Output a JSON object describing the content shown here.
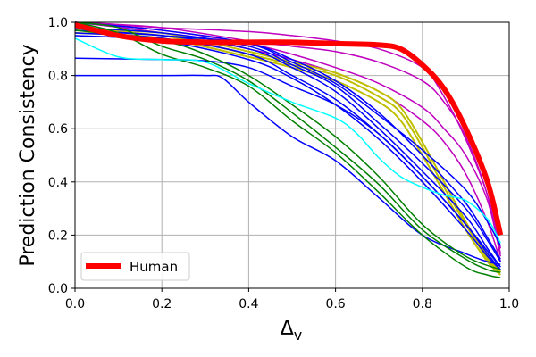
{
  "chart_data": {
    "type": "line",
    "title": "",
    "xlabel": "Δ",
    "xlabel_subscript": "v",
    "ylabel": "Prediction Consistency",
    "xlim": [
      0.0,
      1.0
    ],
    "ylim": [
      0.0,
      1.0
    ],
    "xticks": [
      "0.0",
      "0.2",
      "0.4",
      "0.6",
      "0.8",
      "1.0"
    ],
    "yticks": [
      "0.0",
      "0.2",
      "0.4",
      "0.6",
      "0.8",
      "1.0"
    ],
    "grid": true,
    "legend": {
      "position": "lower-left",
      "entries": [
        "Human"
      ]
    },
    "colors": {
      "human": "#ff0000",
      "blue": "#0000ff",
      "magenta": "#bf00bf",
      "olive": "#bfbf00",
      "green": "#008000",
      "cyan": "#00ffff",
      "grid": "#b0b0b0",
      "axis": "#000000"
    },
    "series": [
      {
        "name": "Human",
        "color": "human",
        "width": 6,
        "x": [
          0.0,
          0.1,
          0.2,
          0.3,
          0.4,
          0.5,
          0.6,
          0.7,
          0.75,
          0.8,
          0.85,
          0.9,
          0.95,
          0.98
        ],
        "y": [
          0.99,
          0.95,
          0.93,
          0.925,
          0.925,
          0.925,
          0.92,
          0.915,
          0.9,
          0.84,
          0.75,
          0.6,
          0.4,
          0.2
        ]
      },
      {
        "name": "magenta-1",
        "color": "magenta",
        "width": 1.5,
        "x": [
          0.0,
          0.2,
          0.4,
          0.5,
          0.6,
          0.7,
          0.8,
          0.85,
          0.9,
          0.95,
          0.98
        ],
        "y": [
          1.0,
          0.98,
          0.965,
          0.95,
          0.93,
          0.9,
          0.83,
          0.72,
          0.56,
          0.35,
          0.15
        ]
      },
      {
        "name": "magenta-2",
        "color": "magenta",
        "width": 1.5,
        "x": [
          0.0,
          0.2,
          0.4,
          0.5,
          0.6,
          0.7,
          0.8,
          0.85,
          0.9,
          0.95,
          0.98
        ],
        "y": [
          1.0,
          0.98,
          0.93,
          0.91,
          0.89,
          0.85,
          0.78,
          0.7,
          0.57,
          0.35,
          0.13
        ]
      },
      {
        "name": "magenta-3",
        "color": "magenta",
        "width": 1.5,
        "x": [
          0.0,
          0.2,
          0.4,
          0.5,
          0.6,
          0.7,
          0.8,
          0.85,
          0.9,
          0.95,
          0.98
        ],
        "y": [
          1.0,
          0.97,
          0.92,
          0.88,
          0.83,
          0.77,
          0.68,
          0.6,
          0.5,
          0.33,
          0.12
        ]
      },
      {
        "name": "magenta-4",
        "color": "magenta",
        "width": 1.5,
        "x": [
          0.0,
          0.2,
          0.4,
          0.5,
          0.6,
          0.7,
          0.8,
          0.85,
          0.9,
          0.95,
          0.98
        ],
        "y": [
          1.0,
          0.96,
          0.9,
          0.86,
          0.81,
          0.74,
          0.63,
          0.55,
          0.43,
          0.25,
          0.1
        ]
      },
      {
        "name": "olive-1",
        "color": "olive",
        "width": 2,
        "x": [
          0.0,
          0.2,
          0.4,
          0.5,
          0.6,
          0.7,
          0.75,
          0.8,
          0.85,
          0.9,
          0.95,
          0.98
        ],
        "y": [
          0.97,
          0.96,
          0.89,
          0.85,
          0.81,
          0.74,
          0.68,
          0.55,
          0.4,
          0.25,
          0.12,
          0.06
        ]
      },
      {
        "name": "olive-2",
        "color": "olive",
        "width": 2,
        "x": [
          0.0,
          0.2,
          0.4,
          0.5,
          0.6,
          0.7,
          0.75,
          0.8,
          0.85,
          0.9,
          0.95,
          0.98
        ],
        "y": [
          0.97,
          0.95,
          0.88,
          0.84,
          0.8,
          0.72,
          0.66,
          0.53,
          0.38,
          0.24,
          0.11,
          0.06
        ]
      },
      {
        "name": "olive-3",
        "color": "olive",
        "width": 2,
        "x": [
          0.0,
          0.2,
          0.4,
          0.5,
          0.6,
          0.7,
          0.75,
          0.8,
          0.85,
          0.9,
          0.95,
          0.98
        ],
        "y": [
          0.96,
          0.94,
          0.87,
          0.83,
          0.78,
          0.7,
          0.63,
          0.5,
          0.36,
          0.22,
          0.1,
          0.05
        ]
      },
      {
        "name": "blue-1",
        "color": "blue",
        "width": 1.5,
        "x": [
          0.0,
          0.2,
          0.4,
          0.5,
          0.6,
          0.7,
          0.8,
          0.9,
          0.95,
          0.98
        ],
        "y": [
          1.0,
          0.97,
          0.92,
          0.85,
          0.77,
          0.65,
          0.52,
          0.37,
          0.25,
          0.16
        ]
      },
      {
        "name": "blue-2",
        "color": "blue",
        "width": 1.5,
        "x": [
          0.0,
          0.2,
          0.4,
          0.5,
          0.6,
          0.7,
          0.8,
          0.9,
          0.95,
          0.98
        ],
        "y": [
          0.98,
          0.96,
          0.91,
          0.84,
          0.76,
          0.62,
          0.47,
          0.3,
          0.18,
          0.1
        ]
      },
      {
        "name": "blue-3",
        "color": "blue",
        "width": 1.5,
        "x": [
          0.0,
          0.2,
          0.4,
          0.5,
          0.6,
          0.7,
          0.8,
          0.9,
          0.95,
          0.98
        ],
        "y": [
          0.97,
          0.95,
          0.9,
          0.83,
          0.74,
          0.6,
          0.44,
          0.27,
          0.15,
          0.08
        ]
      },
      {
        "name": "blue-4",
        "color": "blue",
        "width": 1.5,
        "x": [
          0.0,
          0.2,
          0.4,
          0.5,
          0.6,
          0.7,
          0.8,
          0.9,
          0.95,
          0.98
        ],
        "y": [
          0.96,
          0.94,
          0.88,
          0.8,
          0.71,
          0.58,
          0.42,
          0.24,
          0.13,
          0.07
        ]
      },
      {
        "name": "blue-5",
        "color": "blue",
        "width": 1.5,
        "x": [
          0.0,
          0.2,
          0.4,
          0.5,
          0.6,
          0.7,
          0.8,
          0.9,
          0.95,
          0.98
        ],
        "y": [
          0.95,
          0.93,
          0.86,
          0.79,
          0.69,
          0.56,
          0.4,
          0.22,
          0.12,
          0.07
        ]
      },
      {
        "name": "blue-6",
        "color": "blue",
        "width": 1.5,
        "x": [
          0.0,
          0.2,
          0.4,
          0.5,
          0.6,
          0.7,
          0.8,
          0.9,
          0.95,
          0.98
        ],
        "y": [
          0.97,
          0.95,
          0.92,
          0.86,
          0.78,
          0.66,
          0.5,
          0.32,
          0.19,
          0.11
        ]
      },
      {
        "name": "blue-7",
        "color": "blue",
        "width": 1.5,
        "x": [
          0.0,
          0.2,
          0.3,
          0.4,
          0.5,
          0.6,
          0.7,
          0.8,
          0.9,
          0.95,
          0.98
        ],
        "y": [
          0.865,
          0.86,
          0.855,
          0.83,
          0.76,
          0.69,
          0.58,
          0.42,
          0.24,
          0.14,
          0.08
        ]
      },
      {
        "name": "blue-8",
        "color": "blue",
        "width": 1.5,
        "x": [
          0.0,
          0.2,
          0.3,
          0.34,
          0.4,
          0.5,
          0.6,
          0.7,
          0.8,
          0.9,
          0.95,
          0.98
        ],
        "y": [
          0.8,
          0.8,
          0.8,
          0.79,
          0.7,
          0.57,
          0.48,
          0.34,
          0.2,
          0.13,
          0.1,
          0.09
        ]
      },
      {
        "name": "green-1",
        "color": "green",
        "width": 1.5,
        "x": [
          0.0,
          0.1,
          0.2,
          0.3,
          0.4,
          0.5,
          0.6,
          0.7,
          0.8,
          0.9,
          0.95,
          0.98
        ],
        "y": [
          1.0,
          0.96,
          0.88,
          0.83,
          0.76,
          0.63,
          0.51,
          0.36,
          0.2,
          0.08,
          0.05,
          0.04
        ]
      },
      {
        "name": "green-2",
        "color": "green",
        "width": 1.5,
        "x": [
          0.0,
          0.1,
          0.2,
          0.3,
          0.4,
          0.5,
          0.6,
          0.7,
          0.8,
          0.9,
          0.95,
          0.98
        ],
        "y": [
          1.0,
          0.98,
          0.91,
          0.86,
          0.78,
          0.66,
          0.53,
          0.39,
          0.22,
          0.11,
          0.07,
          0.06
        ]
      },
      {
        "name": "green-3",
        "color": "green",
        "width": 1.5,
        "x": [
          0.0,
          0.2,
          0.3,
          0.4,
          0.5,
          0.6,
          0.7,
          0.8,
          0.9,
          0.98
        ],
        "y": [
          0.97,
          0.93,
          0.88,
          0.8,
          0.69,
          0.57,
          0.42,
          0.24,
          0.12,
          0.07
        ]
      },
      {
        "name": "cyan-1",
        "color": "cyan",
        "width": 1.5,
        "x": [
          0.0,
          0.1,
          0.2,
          0.3,
          0.4,
          0.5,
          0.6,
          0.65,
          0.7,
          0.75,
          0.8,
          0.85,
          0.9,
          0.95,
          0.98
        ],
        "y": [
          0.94,
          0.87,
          0.86,
          0.85,
          0.77,
          0.7,
          0.64,
          0.58,
          0.49,
          0.42,
          0.38,
          0.35,
          0.33,
          0.26,
          0.17
        ]
      }
    ]
  }
}
